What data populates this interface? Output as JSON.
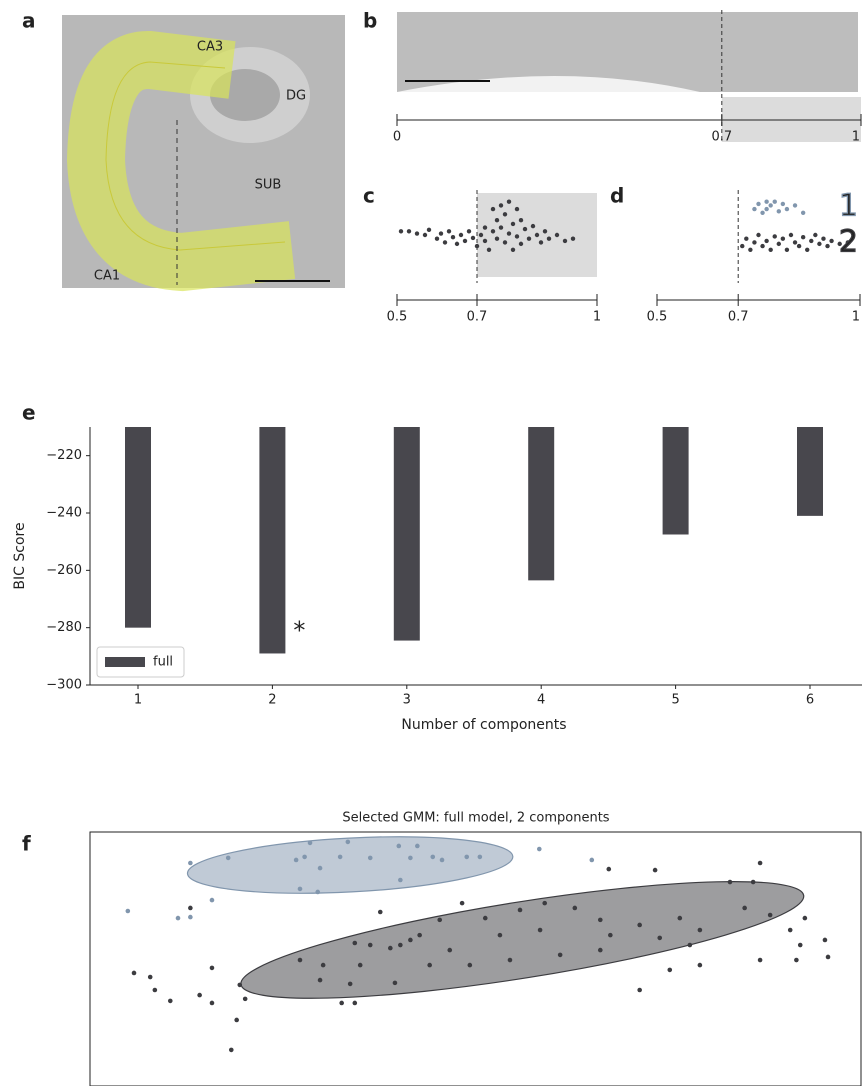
{
  "panels": [
    "a",
    "b",
    "c",
    "d",
    "e",
    "f"
  ],
  "panel_a": {
    "labels": [
      "CA3",
      "DG",
      "SUB",
      "CA1"
    ]
  },
  "chart_data": [
    {
      "type": "strip",
      "xlim": [
        0,
        1
      ],
      "xticks": [
        0,
        0.7,
        1
      ],
      "threshold": 0.7,
      "shade_above": true
    },
    {
      "type": "scatter",
      "xlim": [
        0.5,
        1
      ],
      "ylim": [
        0,
        1
      ],
      "xticks": [
        0.5,
        0.7,
        1
      ],
      "threshold": 0.7,
      "shade_above": true,
      "series": [
        {
          "color": "#3c3c40",
          "x": [
            0.51,
            0.53,
            0.55,
            0.57,
            0.58,
            0.6,
            0.61,
            0.62,
            0.63,
            0.64,
            0.65,
            0.66,
            0.67,
            0.68,
            0.69,
            0.7,
            0.71,
            0.72,
            0.72,
            0.73,
            0.74,
            0.74,
            0.75,
            0.75,
            0.76,
            0.76,
            0.77,
            0.77,
            0.78,
            0.78,
            0.79,
            0.79,
            0.8,
            0.8,
            0.81,
            0.81,
            0.82,
            0.83,
            0.84,
            0.85,
            0.86,
            0.87,
            0.88,
            0.9,
            0.92,
            0.94
          ],
          "y": [
            0.55,
            0.55,
            0.52,
            0.5,
            0.57,
            0.45,
            0.52,
            0.4,
            0.55,
            0.47,
            0.38,
            0.5,
            0.42,
            0.55,
            0.46,
            0.35,
            0.5,
            0.6,
            0.42,
            0.3,
            0.55,
            0.85,
            0.7,
            0.45,
            0.9,
            0.6,
            0.4,
            0.78,
            0.95,
            0.52,
            0.65,
            0.3,
            0.85,
            0.48,
            0.7,
            0.38,
            0.58,
            0.45,
            0.62,
            0.5,
            0.4,
            0.55,
            0.45,
            0.5,
            0.42,
            0.45
          ]
        }
      ]
    },
    {
      "type": "scatter",
      "xlim": [
        0.5,
        1
      ],
      "ylim": [
        0,
        1
      ],
      "xticks": [
        0.5,
        0.7,
        1
      ],
      "threshold": 0.7,
      "shade_above": false,
      "series": [
        {
          "name": "1",
          "color": "#8196ad",
          "x": [
            0.74,
            0.75,
            0.76,
            0.77,
            0.77,
            0.78,
            0.79,
            0.8,
            0.81,
            0.82,
            0.84,
            0.86
          ],
          "y": [
            0.85,
            0.92,
            0.8,
            0.95,
            0.85,
            0.9,
            0.95,
            0.82,
            0.92,
            0.85,
            0.9,
            0.8
          ]
        },
        {
          "name": "2",
          "color": "#3c3c40",
          "x": [
            0.71,
            0.72,
            0.73,
            0.74,
            0.75,
            0.76,
            0.77,
            0.78,
            0.79,
            0.8,
            0.81,
            0.82,
            0.83,
            0.84,
            0.85,
            0.86,
            0.87,
            0.88,
            0.89,
            0.9,
            0.91,
            0.92,
            0.93,
            0.95,
            0.97
          ],
          "y": [
            0.35,
            0.45,
            0.3,
            0.4,
            0.5,
            0.35,
            0.42,
            0.3,
            0.48,
            0.38,
            0.45,
            0.3,
            0.5,
            0.4,
            0.35,
            0.47,
            0.3,
            0.42,
            0.5,
            0.38,
            0.45,
            0.35,
            0.42,
            0.38,
            0.4
          ]
        }
      ]
    },
    {
      "type": "bar",
      "xlabel": "Number of components",
      "ylabel": "BIC Score",
      "categories": [
        "1",
        "2",
        "3",
        "4",
        "5",
        "6"
      ],
      "series": [
        {
          "name": "full",
          "color": "#48474d",
          "values": [
            -280,
            -289,
            -284.5,
            -263.5,
            -247.5,
            -241
          ]
        }
      ],
      "ylim": [
        -300,
        -210
      ],
      "yticks": [
        {
          "value": -300,
          "label": "−300"
        },
        {
          "value": -280,
          "label": "−280"
        },
        {
          "value": -260,
          "label": "−260"
        },
        {
          "value": -240,
          "label": "−240"
        },
        {
          "value": -220,
          "label": "−220"
        }
      ],
      "annotation": {
        "text": "*",
        "x": "2"
      },
      "legend": "lower left"
    },
    {
      "type": "scatter",
      "title": "Selected GMM: full model, 2 components",
      "xlim": [
        0,
        100
      ],
      "ylim": [
        0,
        100
      ],
      "series": [
        {
          "color": "#8196ad",
          "ellipse": {
            "cx": 33.7,
            "cy": 87,
            "rx": 21.1,
            "ry": 10.6,
            "angle": -3
          },
          "x": [
            40,
            13,
            17.9,
            28.5,
            33.4,
            26.7,
            27.8,
            29.8,
            32.4,
            36.3,
            41.5,
            42.4,
            44.4,
            48.8,
            50.5,
            45.6,
            58.2,
            65,
            15.8,
            4.9,
            11.4,
            13,
            27.2,
            29.5,
            40.2
          ],
          "y": [
            94.5,
            87.8,
            89.8,
            95.7,
            96.1,
            89,
            90.2,
            85.8,
            90.2,
            89.8,
            89.8,
            94.5,
            90.2,
            90.2,
            90.2,
            89,
            93.3,
            89,
            73.2,
            68.9,
            66.1,
            66.5,
            77.6,
            76.4,
            81.1
          ]
        },
        {
          "color": "#3c3c40",
          "ellipse": {
            "cx": 56,
            "cy": 57.5,
            "rx": 36.9,
            "ry": 15,
            "angle": -9
          },
          "x": [
            5.7,
            7.8,
            8.4,
            13,
            15.8,
            10.4,
            14.2,
            15.8,
            19.4,
            20.1,
            19,
            18.3,
            30.2,
            34.3,
            36.3,
            38.9,
            42.7,
            45.3,
            48.2,
            51.2,
            55.7,
            58.9,
            62.8,
            66.1,
            71.2,
            76.4,
            79,
            84.8,
            88.1,
            90.7,
            92,
            92.6,
            95.2,
            95.6,
            91.5,
            86.8,
            79,
            75.1,
            71.2,
            66.1,
            60.9,
            54.4,
            49.2,
            44,
            39.5,
            33.7,
            32.6,
            34.3,
            29.8,
            37.6,
            67.4,
            77.7,
            58.3,
            53.1,
            46.6,
            41.5,
            35,
            27.2,
            40.2,
            73.8,
            67.2,
            73.2,
            86.8,
            82.9,
            85.9
          ],
          "y": [
            44.5,
            42.9,
            37.8,
            70.1,
            46.5,
            33.5,
            35.8,
            32.7,
            39.8,
            34.3,
            26,
            14.2,
            47.6,
            56.3,
            55.5,
            54.3,
            59.4,
            65.4,
            72,
            66.1,
            69.3,
            72,
            70.1,
            65.4,
            63.4,
            66.1,
            61.4,
            70.1,
            67.3,
            61.4,
            55.5,
            66.1,
            57.5,
            50.8,
            49.6,
            49.6,
            47.6,
            45.7,
            37.8,
            53.5,
            51.6,
            49.6,
            47.6,
            47.6,
            40.6,
            40.2,
            32.7,
            32.7,
            41.7,
            68.5,
            59.4,
            55.5,
            61.4,
            59.4,
            53.5,
            57.5,
            47.6,
            49.6,
            55.5,
            58.3,
            85.4,
            85,
            87.8,
            80.3,
            80.3
          ]
        }
      ]
    }
  ]
}
